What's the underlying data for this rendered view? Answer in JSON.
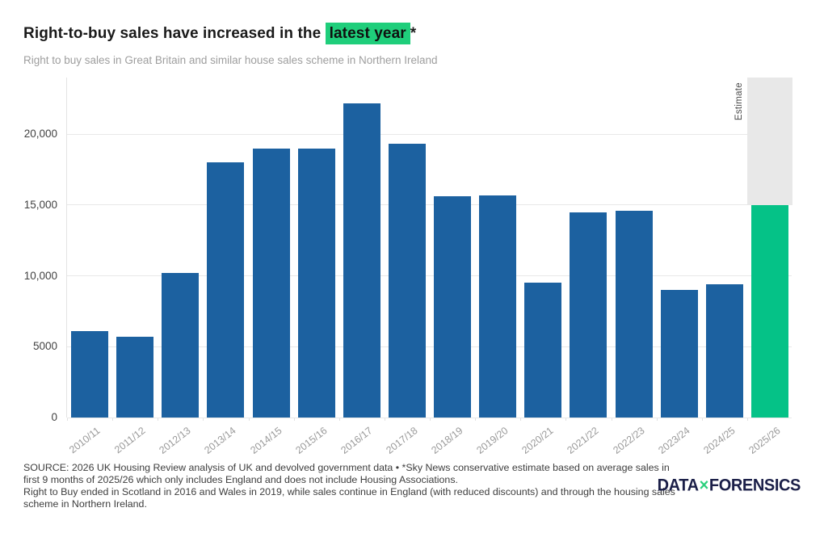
{
  "header": {
    "title_prefix": "Right-to-buy sales have increased in the ",
    "title_highlight": "latest year",
    "title_suffix": "*",
    "subtitle": "Right to buy sales in Great Britain and similar house sales scheme in Northern Ireland"
  },
  "chart_data": {
    "type": "bar",
    "title": "Right-to-buy sales have increased in the latest year*",
    "subtitle": "Right to buy sales in Great Britain and similar house sales scheme in Northern Ireland",
    "categories": [
      "2010/11",
      "2011/12",
      "2012/13",
      "2013/14",
      "2014/15",
      "2015/16",
      "2016/17",
      "2017/18",
      "2018/19",
      "2019/20",
      "2020/21",
      "2021/22",
      "2022/23",
      "2023/24",
      "2024/25",
      "2025/26"
    ],
    "values": [
      6100,
      5700,
      10200,
      18000,
      19000,
      19000,
      22200,
      19300,
      15600,
      15700,
      9500,
      14500,
      14600,
      9000,
      9400,
      15000
    ],
    "highlight_index": 15,
    "estimate_label": "Estimate",
    "xlabel": "",
    "ylabel": "",
    "ylim": [
      0,
      24000
    ],
    "yticks": [
      {
        "value": 0,
        "label": "0"
      },
      {
        "value": 5000,
        "label": "5000"
      },
      {
        "value": 10000,
        "label": "10,000"
      },
      {
        "value": 15000,
        "label": "15,000"
      },
      {
        "value": 20000,
        "label": "20,000"
      }
    ],
    "grid": true,
    "legend": "none",
    "colors": {
      "bar": "#1c61a0",
      "highlight_bar": "#05c287",
      "title_highlight_bg": "#1fce7b",
      "estimate_band": "#e8e8e8",
      "gridline": "#e8e8e8"
    }
  },
  "footer": {
    "source_text": "SOURCE: 2026 UK Housing Review analysis of UK and devolved government data • *Sky News conservative estimate based on average sales in first 9 months of 2025/26 which only includes England and does not include Housing Associations.",
    "note_text": "Right to Buy ended in Scotland in 2016 and Wales in 2019, while sales continue in England (with reduced discounts) and through the housing sales scheme in Northern Ireland.",
    "logo": {
      "part1": "DATA",
      "separator": "×",
      "part2": "FORENSICS",
      "accent_color": "#2bd07d",
      "text_color": "#1b1f48"
    }
  }
}
